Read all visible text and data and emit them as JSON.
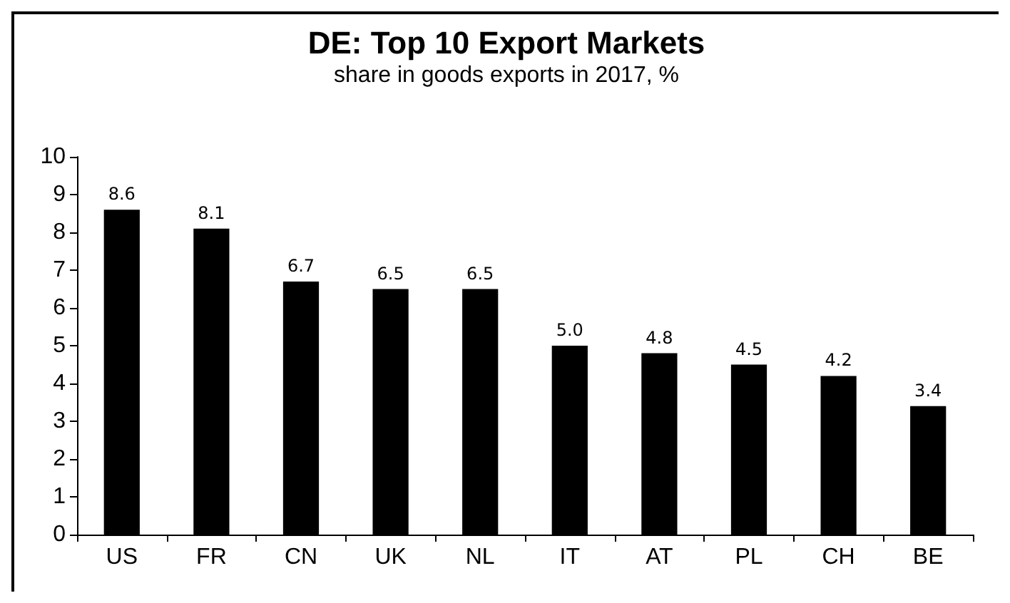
{
  "chart_data": {
    "type": "bar",
    "title": "DE: Top 10 Export Markets",
    "subtitle": "share in goods exports in 2017, %",
    "categories": [
      "US",
      "FR",
      "CN",
      "UK",
      "NL",
      "IT",
      "AT",
      "PL",
      "CH",
      "BE"
    ],
    "values": [
      8.6,
      8.1,
      6.7,
      6.5,
      6.5,
      5.0,
      4.8,
      4.5,
      4.2,
      3.4
    ],
    "value_labels": [
      "8.6",
      "8.1",
      "6.7",
      "6.5",
      "6.5",
      "5.0",
      "4.8",
      "4.5",
      "4.2",
      "3.4"
    ],
    "color": "#000000",
    "ylim": [
      0,
      10
    ],
    "yticks": [
      0,
      1,
      2,
      3,
      4,
      5,
      6,
      7,
      8,
      9,
      10
    ]
  }
}
